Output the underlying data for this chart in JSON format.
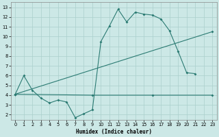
{
  "xlabel": "Humidex (Indice chaleur)",
  "xlim": [
    -0.5,
    23.5
  ],
  "ylim": [
    1.5,
    13.5
  ],
  "yticks": [
    2,
    3,
    4,
    5,
    6,
    7,
    8,
    9,
    10,
    11,
    12,
    13
  ],
  "xticks": [
    0,
    1,
    2,
    3,
    4,
    5,
    6,
    7,
    8,
    9,
    10,
    11,
    12,
    13,
    14,
    15,
    16,
    17,
    18,
    19,
    20,
    21,
    22,
    23
  ],
  "background_color": "#cce8e6",
  "grid_color": "#aacfcc",
  "line_color": "#2a7a72",
  "line1_x": [
    0,
    1,
    2,
    3,
    4,
    5,
    6,
    7,
    8,
    9,
    10,
    11,
    12,
    13,
    14,
    15,
    16,
    17,
    18,
    19,
    20,
    21
  ],
  "line1_y": [
    4.1,
    6.0,
    4.5,
    3.7,
    3.2,
    3.5,
    3.3,
    1.7,
    2.1,
    2.5,
    9.5,
    11.1,
    12.8,
    11.5,
    12.5,
    12.3,
    12.2,
    11.8,
    10.6,
    8.5,
    6.3,
    6.2
  ],
  "line2_x": [
    0,
    9,
    16,
    23
  ],
  "line2_y": [
    4.1,
    4.0,
    4.0,
    4.0
  ],
  "line3_x": [
    0,
    23
  ],
  "line3_y": [
    4.1,
    10.5
  ]
}
